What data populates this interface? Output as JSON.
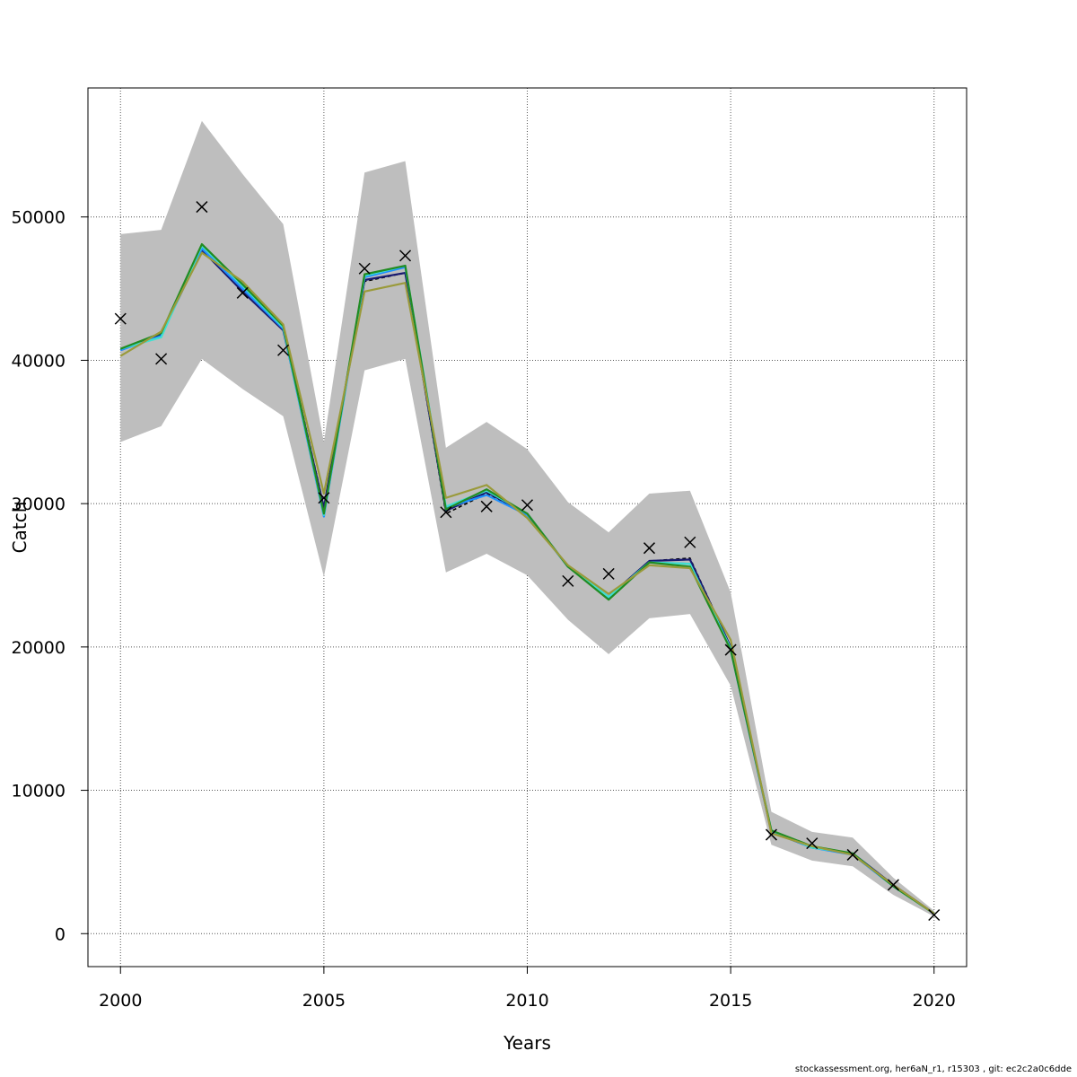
{
  "chart_data": {
    "type": "line",
    "title": "",
    "xlabel": "Years",
    "ylabel": "Catch",
    "xlim": [
      1999.2,
      2020.8
    ],
    "ylim": [
      -2300,
      59000
    ],
    "xticks": [
      2000,
      2005,
      2010,
      2015,
      2020
    ],
    "yticks": [
      0,
      10000,
      20000,
      30000,
      40000,
      50000
    ],
    "grid": true,
    "x": [
      2000,
      2001,
      2002,
      2003,
      2004,
      2005,
      2006,
      2007,
      2008,
      2009,
      2010,
      2011,
      2012,
      2013,
      2014,
      2015,
      2016,
      2017,
      2018,
      2019,
      2020
    ],
    "confidence_band": {
      "color": "#bebebe",
      "lower": [
        34300,
        35400,
        40100,
        38000,
        36100,
        24900,
        39300,
        40100,
        25200,
        26500,
        25000,
        21900,
        19500,
        22000,
        22300,
        17300,
        6200,
        5100,
        4700,
        2700,
        1200
      ],
      "upper": [
        48800,
        49100,
        56700,
        53000,
        49500,
        34300,
        53100,
        53900,
        33900,
        35700,
        33800,
        30100,
        28000,
        30700,
        30900,
        23800,
        8500,
        7100,
        6700,
        3900,
        1600
      ]
    },
    "series": [
      {
        "color": "#000000",
        "dashed": true,
        "values": [
          40800,
          41800,
          47700,
          45000,
          42200,
          29800,
          45500,
          46100,
          29300,
          30700,
          29200,
          25600,
          23400,
          26000,
          26200,
          20000,
          7100,
          6000,
          5600,
          3300,
          1400
        ]
      },
      {
        "color": "#191970",
        "values": [
          40700,
          41800,
          47700,
          44800,
          42100,
          29700,
          45600,
          46100,
          29500,
          30800,
          29300,
          25600,
          23500,
          26000,
          26100,
          20000,
          7100,
          6000,
          5600,
          3400,
          1400
        ]
      },
      {
        "color": "#1e90ff",
        "values": [
          40700,
          41700,
          47800,
          45000,
          42200,
          29100,
          45800,
          46500,
          29700,
          30600,
          29200,
          25600,
          23400,
          25900,
          25800,
          19800,
          7100,
          6000,
          5500,
          3300,
          1400
        ]
      },
      {
        "color": "#40e0d0",
        "values": [
          40800,
          41600,
          48000,
          45200,
          42300,
          29200,
          45900,
          46600,
          29800,
          30900,
          29300,
          25600,
          23500,
          25900,
          25800,
          19900,
          7200,
          6000,
          5600,
          3300,
          1400
        ]
      },
      {
        "color": "#228b22",
        "values": [
          40800,
          41900,
          48100,
          45300,
          42400,
          29300,
          46000,
          46600,
          29600,
          31000,
          29300,
          25600,
          23300,
          25900,
          25600,
          19800,
          7200,
          6100,
          5600,
          3300,
          1400
        ]
      },
      {
        "color": "#9a9a3a",
        "values": [
          40300,
          42000,
          47500,
          45500,
          42500,
          30700,
          44800,
          45400,
          30400,
          31300,
          29000,
          25700,
          23700,
          25700,
          25500,
          20500,
          7000,
          6100,
          5500,
          3400,
          1400
        ]
      }
    ],
    "observed": {
      "marker": "x",
      "values": [
        42900,
        40100,
        50700,
        44700,
        40700,
        30400,
        46400,
        47300,
        29400,
        29800,
        29900,
        24600,
        25100,
        26900,
        27300,
        19800,
        6900,
        6300,
        5500,
        3400,
        1300
      ]
    }
  },
  "footnote": "stockassessment.org, her6aN_r1, r15303 , git: ec2c2a0c6dde"
}
